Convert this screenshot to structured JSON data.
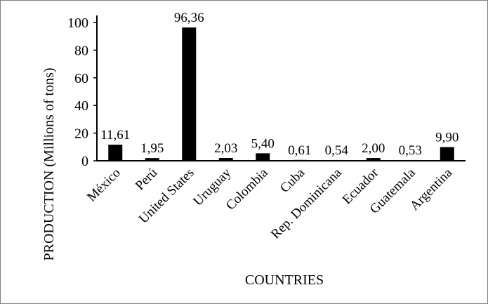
{
  "chart_data": {
    "type": "bar",
    "xlabel": "COUNTRIES",
    "ylabel": "PRODUCTION (Millions of tons)",
    "ylim": [
      0,
      100
    ],
    "yticks": [
      "0",
      "20",
      "40",
      "60",
      "80",
      "100"
    ],
    "grid": false,
    "legend": "none",
    "bar_color": "#000000",
    "categories": [
      "México",
      "Perú",
      "United States",
      "Uruguay",
      "Colombia",
      "Cuba",
      "Rep. Dominicana",
      "Ecuador",
      "Guatemala",
      "Argentina"
    ],
    "values": [
      11.61,
      1.95,
      96.36,
      2.03,
      5.4,
      0.61,
      0.54,
      2.0,
      0.53,
      9.9
    ],
    "value_labels": [
      "11,61",
      "1,95",
      "96,36",
      "2,03",
      "5,40",
      "0,61",
      "0,54",
      "2,00",
      "0,53",
      "9,90"
    ]
  }
}
